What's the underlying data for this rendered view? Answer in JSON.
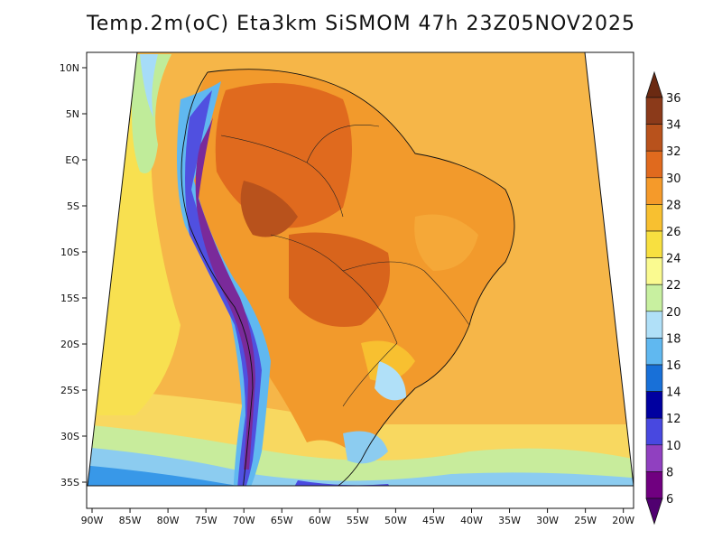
{
  "title": "Temp.2m(oC) Eta3km SiSMOM 47h 23Z05NOV2025",
  "map": {
    "lon_ticks": [
      "90W",
      "85W",
      "80W",
      "75W",
      "70W",
      "65W",
      "60W",
      "55W",
      "50W",
      "45W",
      "40W",
      "35W",
      "30W",
      "25W",
      "20W"
    ],
    "lat_ticks": [
      "10N",
      "5N",
      "EQ",
      "5S",
      "10S",
      "15S",
      "20S",
      "25S",
      "30S",
      "35S"
    ],
    "lon_range": [
      -91,
      -20
    ],
    "lat_range": [
      -38,
      11
    ]
  },
  "colorbar": {
    "labels": [
      "36",
      "34",
      "32",
      "30",
      "28",
      "26",
      "24",
      "22",
      "20",
      "18",
      "16",
      "14",
      "12",
      "10",
      "8",
      "6"
    ],
    "colors": [
      "#6b2a12",
      "#8b3a1a",
      "#b8521c",
      "#e06a1e",
      "#f59a2a",
      "#f8c030",
      "#f8e040",
      "#fafa90",
      "#c8f0a0",
      "#b0e0f8",
      "#60b8f0",
      "#1870d8",
      "#0000a0",
      "#4848e0",
      "#9040c0",
      "#700080",
      "#500070"
    ],
    "unit": "oC"
  }
}
